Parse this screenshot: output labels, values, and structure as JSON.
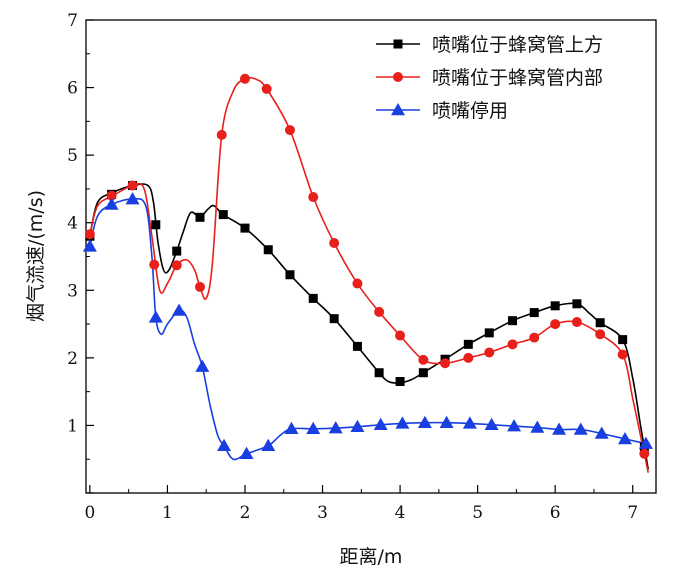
{
  "chart_data": {
    "type": "line",
    "title": "",
    "xlabel": "距离/m",
    "ylabel": "烟气流速/(m/s)",
    "xlim": [
      -0.05,
      7.3
    ],
    "ylim": [
      0,
      7
    ],
    "xticks": [
      "0",
      "1",
      "2",
      "3",
      "4",
      "5",
      "6",
      "7"
    ],
    "yticks": [
      "1",
      "2",
      "3",
      "4",
      "5",
      "6",
      "7"
    ],
    "legend_position": "top-right",
    "grid": false,
    "series": [
      {
        "name": "喷嘴位于蜂窝管上方",
        "color": "#000000",
        "marker": "square",
        "x": [
          0,
          0.28,
          0.55,
          0.85,
          1.12,
          1.42,
          1.72,
          2.0,
          2.3,
          2.58,
          2.88,
          3.15,
          3.45,
          3.73,
          4.0,
          4.3,
          4.58,
          4.88,
          5.15,
          5.45,
          5.73,
          6.0,
          6.28,
          6.58,
          6.87,
          7.15
        ],
        "y": [
          3.8,
          4.42,
          4.55,
          3.97,
          3.58,
          4.08,
          4.12,
          3.92,
          3.6,
          3.23,
          2.88,
          2.58,
          2.17,
          1.78,
          1.65,
          1.78,
          1.98,
          2.2,
          2.37,
          2.55,
          2.67,
          2.77,
          2.8,
          2.52,
          2.27,
          0.68
        ],
        "curve": [
          [
            0,
            3.8
          ],
          [
            0.1,
            4.3
          ],
          [
            0.3,
            4.45
          ],
          [
            0.55,
            4.55
          ],
          [
            0.75,
            4.55
          ],
          [
            0.82,
            4.3
          ],
          [
            0.88,
            3.7
          ],
          [
            0.95,
            3.3
          ],
          [
            1.02,
            3.3
          ],
          [
            1.12,
            3.58
          ],
          [
            1.2,
            3.85
          ],
          [
            1.3,
            4.15
          ],
          [
            1.42,
            4.08
          ],
          [
            1.52,
            4.2
          ],
          [
            1.6,
            4.25
          ],
          [
            1.72,
            4.12
          ],
          [
            2.0,
            3.92
          ],
          [
            2.3,
            3.6
          ],
          [
            2.58,
            3.23
          ],
          [
            2.88,
            2.88
          ],
          [
            3.15,
            2.58
          ],
          [
            3.45,
            2.17
          ],
          [
            3.73,
            1.78
          ],
          [
            3.85,
            1.65
          ],
          [
            4.0,
            1.63
          ],
          [
            4.15,
            1.68
          ],
          [
            4.3,
            1.78
          ],
          [
            4.58,
            1.98
          ],
          [
            4.88,
            2.2
          ],
          [
            5.15,
            2.37
          ],
          [
            5.45,
            2.55
          ],
          [
            5.73,
            2.67
          ],
          [
            6.0,
            2.77
          ],
          [
            6.28,
            2.8
          ],
          [
            6.45,
            2.65
          ],
          [
            6.58,
            2.52
          ],
          [
            6.87,
            2.27
          ],
          [
            7.0,
            1.7
          ],
          [
            7.1,
            1.0
          ],
          [
            7.15,
            0.68
          ],
          [
            7.2,
            0.35
          ]
        ]
      },
      {
        "name": "喷嘴位于蜂窝管内部",
        "color": "#e8201c",
        "marker": "circle",
        "x": [
          0,
          0.28,
          0.55,
          0.83,
          1.12,
          1.42,
          1.7,
          2.0,
          2.28,
          2.58,
          2.88,
          3.15,
          3.45,
          3.73,
          4.0,
          4.3,
          4.58,
          4.88,
          5.15,
          5.45,
          5.73,
          6.0,
          6.28,
          6.58,
          6.87,
          7.15
        ],
        "y": [
          3.83,
          4.4,
          4.55,
          3.38,
          3.37,
          3.05,
          5.3,
          6.13,
          5.98,
          5.37,
          4.38,
          3.7,
          3.1,
          2.68,
          2.33,
          1.97,
          1.92,
          2.0,
          2.08,
          2.2,
          2.3,
          2.5,
          2.53,
          2.35,
          2.05,
          0.58
        ],
        "curve": [
          [
            0,
            3.83
          ],
          [
            0.1,
            4.25
          ],
          [
            0.3,
            4.4
          ],
          [
            0.55,
            4.55
          ],
          [
            0.7,
            4.5
          ],
          [
            0.8,
            3.8
          ],
          [
            0.9,
            3.0
          ],
          [
            1.0,
            3.1
          ],
          [
            1.12,
            3.37
          ],
          [
            1.25,
            3.45
          ],
          [
            1.35,
            3.3
          ],
          [
            1.42,
            3.05
          ],
          [
            1.5,
            2.88
          ],
          [
            1.58,
            3.4
          ],
          [
            1.7,
            5.3
          ],
          [
            1.85,
            5.95
          ],
          [
            2.0,
            6.13
          ],
          [
            2.15,
            6.12
          ],
          [
            2.28,
            5.98
          ],
          [
            2.58,
            5.37
          ],
          [
            2.88,
            4.38
          ],
          [
            3.15,
            3.7
          ],
          [
            3.45,
            3.1
          ],
          [
            3.73,
            2.68
          ],
          [
            4.0,
            2.33
          ],
          [
            4.3,
            1.97
          ],
          [
            4.58,
            1.92
          ],
          [
            4.88,
            2.0
          ],
          [
            5.15,
            2.08
          ],
          [
            5.45,
            2.2
          ],
          [
            5.73,
            2.3
          ],
          [
            6.0,
            2.5
          ],
          [
            6.28,
            2.53
          ],
          [
            6.58,
            2.35
          ],
          [
            6.87,
            2.05
          ],
          [
            7.0,
            1.4
          ],
          [
            7.1,
            0.85
          ],
          [
            7.15,
            0.58
          ],
          [
            7.2,
            0.3
          ]
        ]
      },
      {
        "name": "喷嘴停用",
        "color": "#1a3fe0",
        "marker": "triangle",
        "x": [
          0,
          0.28,
          0.55,
          0.85,
          1.15,
          1.45,
          1.73,
          2.02,
          2.3,
          2.6,
          2.88,
          3.17,
          3.45,
          3.75,
          4.03,
          4.32,
          4.6,
          4.9,
          5.18,
          5.47,
          5.77,
          6.05,
          6.33,
          6.6,
          6.9,
          7.17
        ],
        "y": [
          3.65,
          4.27,
          4.35,
          2.6,
          2.7,
          1.87,
          0.7,
          0.58,
          0.7,
          0.95,
          0.95,
          0.96,
          0.98,
          1.01,
          1.03,
          1.04,
          1.04,
          1.03,
          1.01,
          0.99,
          0.97,
          0.94,
          0.94,
          0.88,
          0.8,
          0.73
        ],
        "curve": [
          [
            0,
            3.65
          ],
          [
            0.1,
            4.1
          ],
          [
            0.28,
            4.27
          ],
          [
            0.55,
            4.35
          ],
          [
            0.72,
            4.25
          ],
          [
            0.8,
            3.5
          ],
          [
            0.85,
            2.6
          ],
          [
            0.92,
            2.35
          ],
          [
            1.0,
            2.5
          ],
          [
            1.15,
            2.7
          ],
          [
            1.25,
            2.6
          ],
          [
            1.35,
            2.2
          ],
          [
            1.45,
            1.87
          ],
          [
            1.55,
            1.3
          ],
          [
            1.65,
            0.85
          ],
          [
            1.73,
            0.7
          ],
          [
            1.85,
            0.5
          ],
          [
            2.02,
            0.58
          ],
          [
            2.3,
            0.7
          ],
          [
            2.45,
            0.85
          ],
          [
            2.6,
            0.95
          ],
          [
            2.88,
            0.95
          ],
          [
            3.17,
            0.96
          ],
          [
            3.45,
            0.98
          ],
          [
            3.75,
            1.01
          ],
          [
            4.03,
            1.03
          ],
          [
            4.32,
            1.04
          ],
          [
            4.6,
            1.04
          ],
          [
            4.9,
            1.03
          ],
          [
            5.18,
            1.01
          ],
          [
            5.47,
            0.99
          ],
          [
            5.77,
            0.97
          ],
          [
            6.05,
            0.94
          ],
          [
            6.33,
            0.94
          ],
          [
            6.6,
            0.88
          ],
          [
            6.9,
            0.8
          ],
          [
            7.17,
            0.73
          ]
        ]
      }
    ]
  }
}
